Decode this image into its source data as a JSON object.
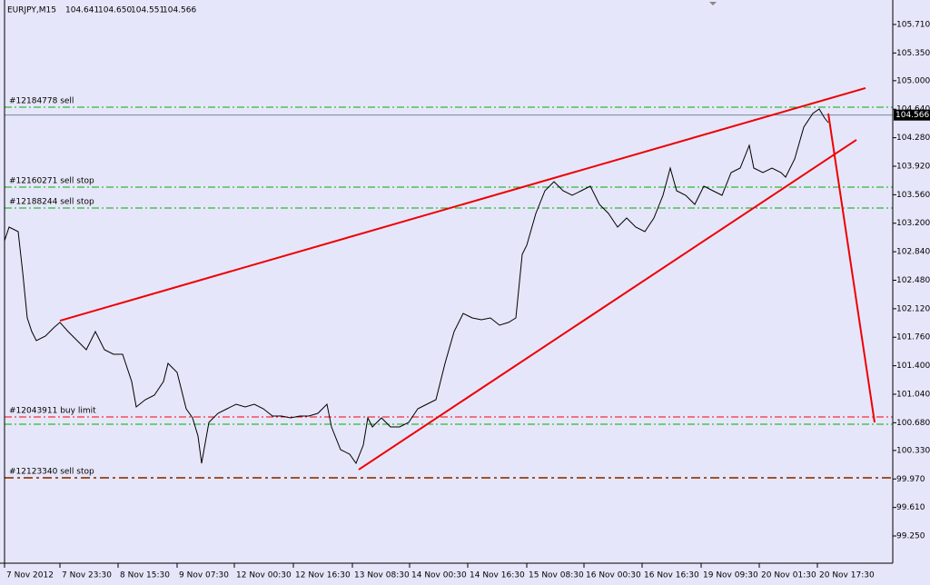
{
  "chart_data": {
    "type": "line",
    "symbol": "EURJPY,M15",
    "ohlc": [
      "104.641",
      "104.650",
      "104.551",
      "104.566"
    ],
    "current_price": {
      "value": 104.566,
      "label": "104.566",
      "color": "#000000"
    },
    "x": [
      0,
      5,
      15,
      20,
      25,
      30,
      35,
      45,
      55,
      61,
      70,
      80,
      90,
      100,
      110,
      120,
      130,
      140,
      145,
      155,
      165,
      175,
      180,
      190,
      200,
      207,
      213,
      217,
      225,
      235,
      245,
      255,
      265,
      275,
      285,
      295,
      305,
      315,
      325,
      335,
      345,
      355,
      360,
      370,
      380,
      387,
      395,
      400,
      405,
      415,
      425,
      435,
      445,
      455,
      465,
      475,
      485,
      495,
      505,
      515,
      525,
      535,
      545,
      555,
      563,
      570,
      575,
      585,
      595,
      605,
      615,
      625,
      635,
      645,
      655,
      665,
      675,
      685,
      695,
      705,
      715,
      725,
      733,
      740,
      750,
      760,
      770,
      780,
      790,
      800,
      810,
      820,
      825,
      835,
      845,
      855,
      860,
      870,
      880,
      890,
      897,
      903,
      907
    ],
    "series": [
      {
        "color": "#000000",
        "values": [
          102.979,
          103.151,
          103.094,
          102.578,
          102.004,
          101.832,
          101.717,
          101.774,
          101.889,
          101.947,
          101.832,
          101.717,
          101.602,
          101.832,
          101.602,
          101.545,
          101.545,
          101.201,
          100.879,
          100.971,
          101.029,
          101.201,
          101.43,
          101.315,
          100.856,
          100.742,
          100.512,
          100.168,
          100.684,
          100.799,
          100.856,
          100.914,
          100.879,
          100.914,
          100.856,
          100.765,
          100.765,
          100.742,
          100.765,
          100.765,
          100.799,
          100.914,
          100.627,
          100.34,
          100.283,
          100.168,
          100.398,
          100.742,
          100.627,
          100.742,
          100.627,
          100.627,
          100.684,
          100.856,
          100.914,
          100.971,
          101.43,
          101.832,
          102.061,
          102.004,
          101.981,
          102.004,
          101.912,
          101.947,
          102.004,
          102.807,
          102.922,
          103.323,
          103.61,
          103.725,
          103.61,
          103.553,
          103.61,
          103.668,
          103.438,
          103.323,
          103.151,
          103.266,
          103.151,
          103.094,
          103.266,
          103.553,
          103.897,
          103.61,
          103.553,
          103.438,
          103.668,
          103.61,
          103.553,
          103.84,
          103.897,
          104.184,
          103.897,
          103.84,
          103.897,
          103.84,
          103.782,
          104.012,
          104.413,
          104.586,
          104.643,
          104.528,
          104.471
        ]
      }
    ],
    "ylim": [
      98.906,
      105.962
    ],
    "yticks": [
      {
        "value": 99.25,
        "label": "99.250"
      },
      {
        "value": 99.61,
        "label": "99.610"
      },
      {
        "value": 99.97,
        "label": "99.970"
      },
      {
        "value": 100.33,
        "label": "100.330"
      },
      {
        "value": 100.68,
        "label": "100.680"
      },
      {
        "value": 101.04,
        "label": "101.040"
      },
      {
        "value": 101.4,
        "label": "101.400"
      },
      {
        "value": 101.76,
        "label": "101.760"
      },
      {
        "value": 102.12,
        "label": "102.120"
      },
      {
        "value": 102.48,
        "label": "102.480"
      },
      {
        "value": 102.84,
        "label": "102.840"
      },
      {
        "value": 103.2,
        "label": "103.200"
      },
      {
        "value": 103.56,
        "label": "103.560"
      },
      {
        "value": 103.92,
        "label": "103.920"
      },
      {
        "value": 104.28,
        "label": "104.280"
      },
      {
        "value": 104.64,
        "label": "104.640"
      },
      {
        "value": 105.0,
        "label": "105.000"
      },
      {
        "value": 105.35,
        "label": "105.350"
      },
      {
        "value": 105.71,
        "label": "105.710"
      }
    ],
    "xlim": [
      0,
      978
    ],
    "xticks": [
      {
        "value": 0,
        "label": "7 Nov 2012"
      },
      {
        "value": 61,
        "label": "7 Nov 23:30"
      },
      {
        "value": 125,
        "label": "8 Nov 15:30"
      },
      {
        "value": 190,
        "label": "9 Nov 07:30"
      },
      {
        "value": 253,
        "label": "12 Nov 00:30"
      },
      {
        "value": 318,
        "label": "12 Nov 16:30"
      },
      {
        "value": 383,
        "label": "13 Nov 08:30"
      },
      {
        "value": 446,
        "label": "14 Nov 00:30"
      },
      {
        "value": 510,
        "label": "14 Nov 16:30"
      },
      {
        "value": 575,
        "label": "15 Nov 08:30"
      },
      {
        "value": 638,
        "label": "16 Nov 00:30"
      },
      {
        "value": 702,
        "label": "16 Nov 16:30"
      },
      {
        "value": 767,
        "label": "19 Nov 09:30"
      },
      {
        "value": 831,
        "label": "20 Nov 01:30"
      },
      {
        "value": 895,
        "label": "20 Nov 17:30"
      }
    ],
    "levels": [
      {
        "label": "#12184778 sell",
        "value": 104.666,
        "color": "#00b000"
      },
      {
        "label": "#12160271 sell stop",
        "value": 103.656,
        "color": "#00b000"
      },
      {
        "label": "#12188244 sell stop",
        "value": 103.392,
        "color": "#00b000"
      },
      {
        "label": "#12043911 buy limit",
        "value": 100.753,
        "color": "#ff0000"
      },
      {
        "value": 100.661,
        "color": "#00b000"
      },
      {
        "label": "#12123340 sell stop",
        "value": 99.984,
        "color": "#a0522d"
      }
    ],
    "trendlines": [
      {
        "color": "#ee0000",
        "points": [
          [
            61,
            101.969
          ],
          [
            948,
            104.907
          ]
        ]
      },
      {
        "color": "#ee0000",
        "points": [
          [
            390,
            100.088
          ],
          [
            938,
            104.253
          ]
        ]
      },
      {
        "color": "#ee0000",
        "points": [
          [
            907,
            104.586
          ],
          [
            958,
            100.684
          ]
        ]
      }
    ]
  }
}
